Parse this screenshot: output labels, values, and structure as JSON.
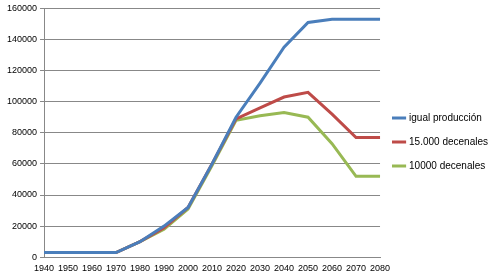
{
  "chart_data": {
    "type": "line",
    "categories": [
      "1940",
      "1950",
      "1960",
      "1970",
      "1980",
      "1990",
      "2000",
      "2010",
      "2020",
      "2030",
      "2040",
      "2050",
      "2060",
      "2070",
      "2080"
    ],
    "series": [
      {
        "name": "igual producción",
        "color": "#4a7ebb",
        "values": [
          3000,
          3000,
          3000,
          3000,
          10000,
          20000,
          32000,
          60000,
          90000,
          112000,
          135000,
          151000,
          153000,
          153000,
          153000
        ]
      },
      {
        "name": "15.000 decenales",
        "color": "#be4b48",
        "values": [
          3000,
          3000,
          3000,
          3000,
          10000,
          19000,
          32000,
          60000,
          89000,
          96000,
          103000,
          106000,
          92000,
          77000,
          77000
        ]
      },
      {
        "name": "10000 decenales",
        "color": "#98b954",
        "values": [
          3000,
          3000,
          3000,
          3000,
          10000,
          18000,
          31000,
          59000,
          88000,
          91000,
          93000,
          90000,
          73000,
          52000,
          52000
        ]
      }
    ],
    "ylim": [
      0,
      160000
    ],
    "yticks": [
      0,
      20000,
      40000,
      60000,
      80000,
      100000,
      120000,
      140000,
      160000
    ],
    "grid": true,
    "legend": "right"
  }
}
